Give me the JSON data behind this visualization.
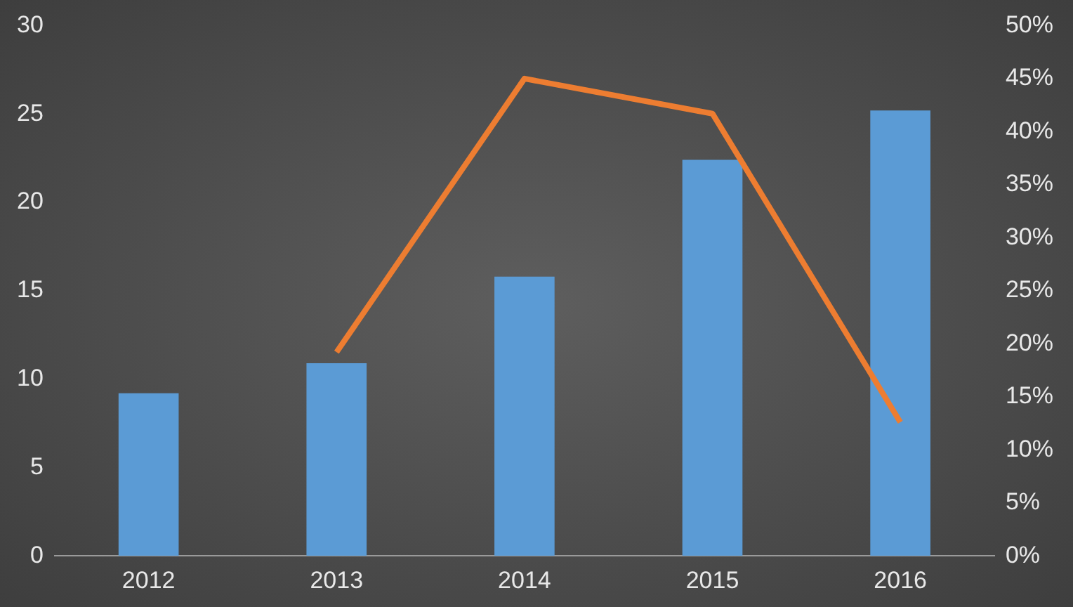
{
  "chart_data": {
    "type": "bar",
    "categories": [
      "2012",
      "2013",
      "2014",
      "2015",
      "2016"
    ],
    "series": [
      {
        "color": "#5b9bd5",
        "values": [
          9.2,
          10.9,
          15.8,
          22.4,
          25.2
        ]
      },
      {
        "type": "line",
        "axis": "y2",
        "color": "#ed7d31",
        "values": [
          null,
          19.2,
          45,
          41.7,
          12.6
        ]
      }
    ],
    "ylim": [
      0,
      30
    ],
    "yticks": [
      0,
      5,
      10,
      15,
      20,
      25,
      30
    ],
    "y2lim": [
      0,
      50
    ],
    "y2ticks": [
      {
        "value": 0,
        "label": "0%"
      },
      {
        "value": 5,
        "label": "5%"
      },
      {
        "value": 10,
        "label": "10%"
      },
      {
        "value": 15,
        "label": "15%"
      },
      {
        "value": 20,
        "label": "20%"
      },
      {
        "value": 25,
        "label": "25%"
      },
      {
        "value": 30,
        "label": "30%"
      },
      {
        "value": 35,
        "label": "35%"
      },
      {
        "value": 40,
        "label": "40%"
      },
      {
        "value": 45,
        "label": "45%"
      },
      {
        "value": 50,
        "label": "50%"
      }
    ]
  }
}
